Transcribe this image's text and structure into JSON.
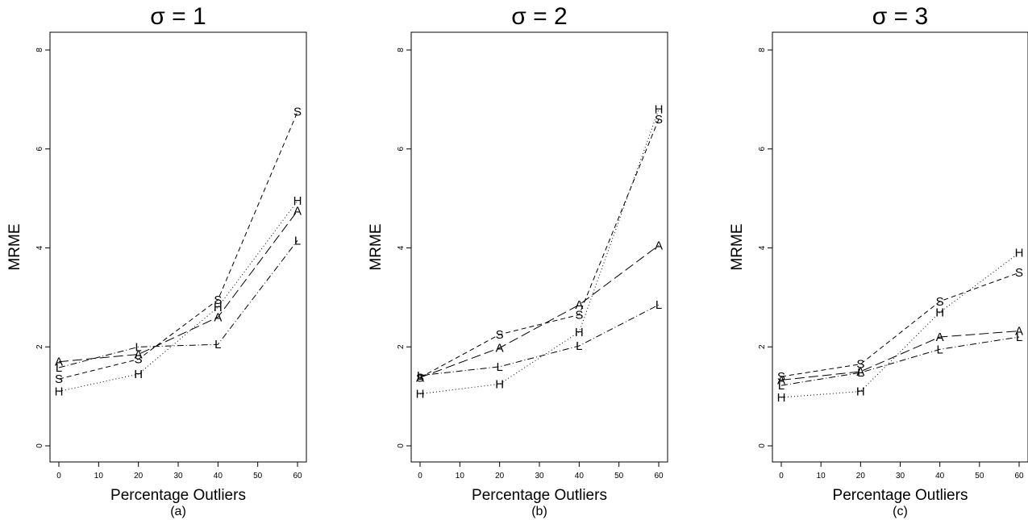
{
  "chart_data": [
    {
      "type": "line",
      "title": "σ = 1",
      "xlabel": "Percentage Outliers",
      "ylabel": "MRME",
      "caption": "(a)",
      "x": [
        0,
        20,
        40,
        60
      ],
      "xticks": [
        "0",
        "10",
        "20",
        "30",
        "40",
        "50",
        "60"
      ],
      "yticks": [
        "0",
        "2",
        "4",
        "6",
        "8"
      ],
      "xlim": [
        0,
        60
      ],
      "ylim": [
        0,
        8
      ],
      "series": [
        {
          "name": "S",
          "dash": "dashed",
          "values": [
            1.35,
            1.75,
            2.95,
            6.75
          ]
        },
        {
          "name": "H",
          "dash": "dotted",
          "values": [
            1.1,
            1.45,
            2.8,
            4.95
          ]
        },
        {
          "name": "A",
          "dash": "longdash",
          "values": [
            1.7,
            1.85,
            2.6,
            4.75
          ]
        },
        {
          "name": "L",
          "dash": "dotdash",
          "values": [
            1.58,
            2.0,
            2.05,
            4.15
          ]
        }
      ]
    },
    {
      "type": "line",
      "title": "σ = 2",
      "xlabel": "Percentage Outliers",
      "ylabel": "MRME",
      "caption": "(b)",
      "x": [
        0,
        20,
        40,
        60
      ],
      "xticks": [
        "0",
        "10",
        "20",
        "30",
        "40",
        "50",
        "60"
      ],
      "yticks": [
        "0",
        "2",
        "4",
        "6",
        "8"
      ],
      "xlim": [
        0,
        60
      ],
      "ylim": [
        0,
        8
      ],
      "series": [
        {
          "name": "S",
          "dash": "dashed",
          "values": [
            1.38,
            2.25,
            2.65,
            6.6
          ]
        },
        {
          "name": "H",
          "dash": "dotted",
          "values": [
            1.05,
            1.25,
            2.3,
            6.8
          ]
        },
        {
          "name": "A",
          "dash": "longdash",
          "values": [
            1.38,
            1.98,
            2.85,
            4.05
          ]
        },
        {
          "name": "L",
          "dash": "dotdash",
          "values": [
            1.42,
            1.6,
            2.02,
            2.85
          ]
        }
      ]
    },
    {
      "type": "line",
      "title": "σ = 3",
      "xlabel": "Percentage Outliers",
      "ylabel": "MRME",
      "caption": "(c)",
      "x": [
        0,
        20,
        40,
        60
      ],
      "xticks": [
        "0",
        "10",
        "20",
        "30",
        "40",
        "50",
        "60"
      ],
      "yticks": [
        "0",
        "2",
        "4",
        "6",
        "8"
      ],
      "xlim": [
        0,
        60
      ],
      "ylim": [
        0,
        8
      ],
      "series": [
        {
          "name": "S",
          "dash": "dashed",
          "values": [
            1.4,
            1.65,
            2.92,
            3.5
          ]
        },
        {
          "name": "H",
          "dash": "dotted",
          "values": [
            0.98,
            1.1,
            2.7,
            3.9
          ]
        },
        {
          "name": "A",
          "dash": "longdash",
          "values": [
            1.33,
            1.5,
            2.2,
            2.32
          ]
        },
        {
          "name": "L",
          "dash": "dotdash",
          "values": [
            1.22,
            1.48,
            1.95,
            2.2
          ]
        }
      ]
    }
  ]
}
